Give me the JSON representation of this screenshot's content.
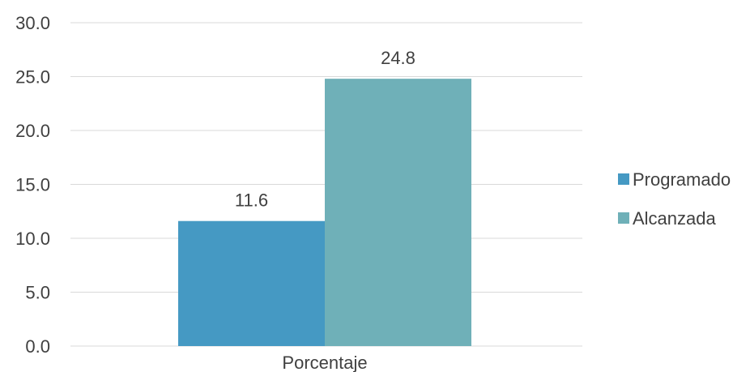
{
  "chart_data": {
    "type": "bar",
    "categories": [
      "Porcentaje"
    ],
    "series": [
      {
        "name": "Programado",
        "values": [
          11.6
        ],
        "color": "#4599c3"
      },
      {
        "name": "Alcanzada",
        "values": [
          24.8
        ],
        "color": "#6fb0b8"
      }
    ],
    "data_labels": [
      "11.6",
      "24.8"
    ],
    "ylim": [
      0,
      30
    ],
    "yticks": [
      "0.0",
      "5.0",
      "10.0",
      "15.0",
      "20.0",
      "25.0",
      "30.0"
    ],
    "ytick_values": [
      0,
      5,
      10,
      15,
      20,
      25,
      30
    ],
    "grid": true,
    "legend_position": "right",
    "title": "",
    "xlabel": "",
    "ylabel": ""
  }
}
